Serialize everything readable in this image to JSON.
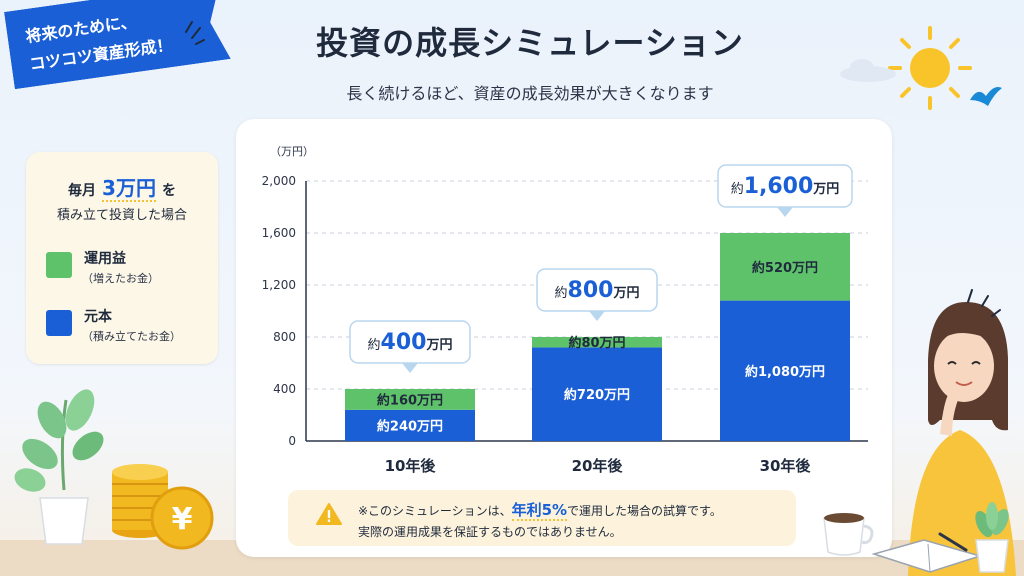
{
  "banner": {
    "line1": "将来のために、",
    "line2": "コツコツ資産形成！"
  },
  "header": {
    "title": "投資の成長シミュレーション",
    "subtitle": "長く続けるほど、資産の成長効果が大きくなります"
  },
  "legend": {
    "monthly_prefix": "毎月",
    "monthly_amount": "3万円",
    "monthly_suffix": "を",
    "line2": "積み立て投資した場合",
    "items": [
      {
        "label": "運用益",
        "sub": "（増えたお金）",
        "color": "#5ec26a"
      },
      {
        "label": "元本",
        "sub": "（積み立てたお金）",
        "color": "#1a5fd6"
      }
    ]
  },
  "chart_data": {
    "type": "bar",
    "stacked": true,
    "unit_label": "（万円）",
    "categories": [
      "10年後",
      "20年後",
      "30年後"
    ],
    "series": [
      {
        "name": "元本",
        "values": [
          240,
          720,
          1080
        ],
        "labels": [
          "約240万円",
          "約720万円",
          "約1,080万円"
        ],
        "color": "#1a5fd6"
      },
      {
        "name": "運用益",
        "values": [
          160,
          80,
          520
        ],
        "labels": [
          "約160万円",
          "約80万円",
          "約520万円"
        ],
        "color": "#5ec26a"
      }
    ],
    "totals": [
      {
        "prefix": "約",
        "value": "400",
        "suffix": "万円"
      },
      {
        "prefix": "約",
        "value": "800",
        "suffix": "万円"
      },
      {
        "prefix": "約",
        "value": "1,600",
        "suffix": "万円"
      }
    ],
    "ylim": [
      0,
      2000
    ],
    "yticks": [
      0,
      400,
      800,
      1200,
      1600,
      2000
    ],
    "ytick_labels": [
      "0",
      "400",
      "800",
      "1,200",
      "1,600",
      "2,000"
    ],
    "grid": true
  },
  "note": {
    "line1_before": "※このシミュレーションは、",
    "highlight": "年利5%",
    "line1_after": "で運用した場合の試算です。",
    "line2": "実際の運用成果を保証するものではありません。"
  },
  "icons": [
    "sun-icon",
    "bird-icon",
    "warning-icon",
    "yen-coin-icon",
    "plant-icon",
    "coffee-cup-icon",
    "notebook-icon",
    "person-illustration"
  ]
}
